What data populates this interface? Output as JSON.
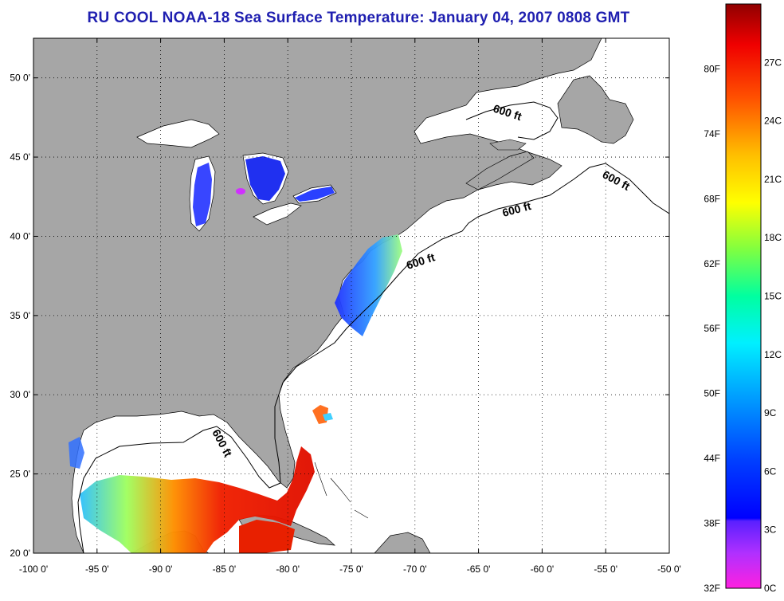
{
  "title": "RU COOL  NOAA-18  Sea Surface Temperature:  January 04, 2007 0808 GMT",
  "axes": {
    "x_ticks": [
      "-100 0'",
      "-95 0'",
      "-90 0'",
      "-85 0'",
      "-80 0'",
      "-75 0'",
      "-70 0'",
      "-65 0'",
      "-60 0'",
      "-55 0'",
      "-50 0'"
    ],
    "y_ticks": [
      "50 0'",
      "45 0'",
      "40 0'",
      "35 0'",
      "30 0'",
      "25 0'",
      "20 0'"
    ],
    "x_range": [
      -100,
      -50
    ],
    "y_range": [
      20,
      52.5
    ],
    "grid": "dotted"
  },
  "contour_labels": [
    "600 ft",
    "600 ft",
    "600 ft",
    "600 ft",
    "600 ft"
  ],
  "colorbar": {
    "fahrenheit": [
      "80F",
      "74F",
      "68F",
      "62F",
      "56F",
      "50F",
      "44F",
      "38F",
      "32F"
    ],
    "celsius": [
      "27C",
      "24C",
      "21C",
      "18C",
      "15C",
      "12C",
      "9C",
      "6C",
      "3C",
      "0C"
    ]
  },
  "colors": {
    "land": "#a6a6a6",
    "ocean_nodata": "#ffffff",
    "title": "#1f1fb0"
  }
}
